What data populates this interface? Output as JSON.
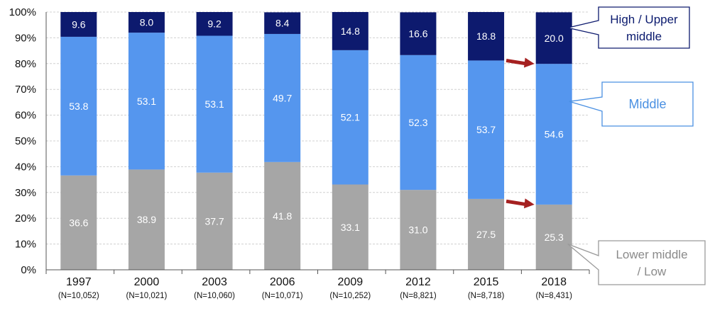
{
  "chart_data": {
    "type": "bar",
    "stacked": true,
    "normalized_percent": true,
    "categories": [
      "1997",
      "2000",
      "2003",
      "2006",
      "2009",
      "2012",
      "2015",
      "2018"
    ],
    "sample_sizes": [
      "(N=10,052)",
      "(N=10,021)",
      "(N=10,060)",
      "(N=10,071)",
      "(N=10,252)",
      "(N=8,821)",
      "(N=8,718)",
      "(N=8,431)"
    ],
    "series": [
      {
        "name": "Lower middle / Low",
        "color": "#a6a6a6",
        "values": [
          36.6,
          38.9,
          37.7,
          41.8,
          33.1,
          31.0,
          27.5,
          25.3
        ]
      },
      {
        "name": "Middle",
        "color": "#5596ee",
        "values": [
          53.8,
          53.1,
          53.1,
          49.7,
          52.1,
          52.3,
          53.7,
          54.6
        ]
      },
      {
        "name": "High / Upper middle",
        "color": "#0d1a6e",
        "values": [
          9.6,
          8.0,
          9.2,
          8.4,
          14.8,
          16.6,
          18.8,
          20.0
        ]
      }
    ],
    "value_labels": [
      [
        "36.6",
        "38.9",
        "37.7",
        "41.8",
        "33.1",
        "31.0",
        "27.5",
        "25.3"
      ],
      [
        "53.8",
        "53.1",
        "53.1",
        "49.7",
        "52.1",
        "52.3",
        "53.7",
        "54.6"
      ],
      [
        "9.6",
        "8.0",
        "9.2",
        "8.4",
        "14.8",
        "16.6",
        "18.8",
        "20.0"
      ]
    ],
    "yticks": [
      "0%",
      "10%",
      "20%",
      "30%",
      "40%",
      "50%",
      "60%",
      "70%",
      "80%",
      "90%",
      "100%"
    ],
    "ylim": [
      0,
      100
    ],
    "grid": true,
    "callouts": [
      {
        "series_index": 2,
        "lines": [
          "High / Upper",
          "middle"
        ],
        "style": "dark"
      },
      {
        "series_index": 1,
        "lines": [
          "Middle"
        ],
        "style": "blue"
      },
      {
        "series_index": 0,
        "lines": [
          "Lower middle",
          "/ Low"
        ],
        "style": "gray"
      }
    ],
    "arrows": [
      {
        "from_category": "2015",
        "to_category": "2018",
        "boundary": "upper-of-middle"
      },
      {
        "from_category": "2015",
        "to_category": "2018",
        "boundary": "upper-of-lower"
      }
    ],
    "arrow_color": "#a52020"
  }
}
